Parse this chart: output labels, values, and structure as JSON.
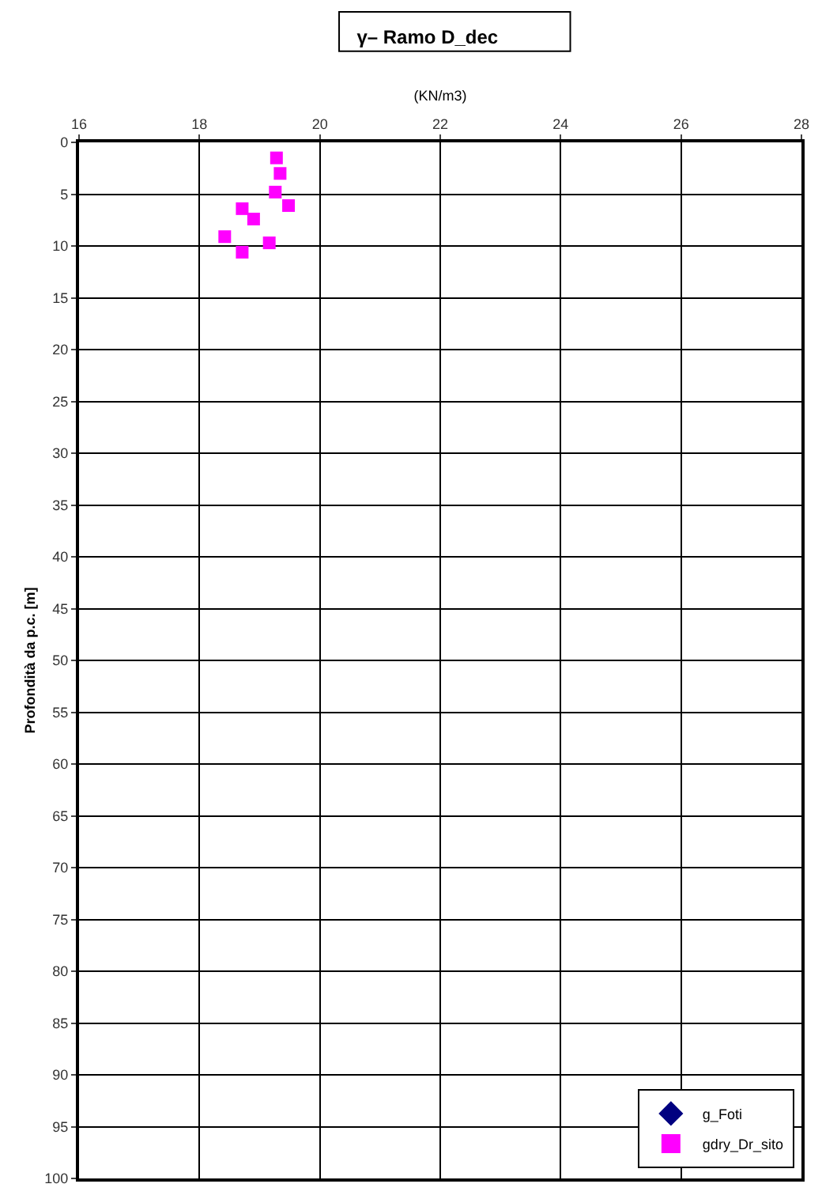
{
  "chart_data": {
    "type": "scatter",
    "title": "γ– Ramo D_dec",
    "xlabel": "(KN/m3)",
    "ylabel": "Profondità da p.c. [m]",
    "xlim": [
      16,
      28
    ],
    "xticks": [
      16,
      18,
      20,
      22,
      24,
      26,
      28
    ],
    "ylim": [
      100,
      0
    ],
    "yticks": [
      0,
      5,
      10,
      15,
      20,
      25,
      30,
      35,
      40,
      45,
      50,
      55,
      60,
      65,
      70,
      75,
      80,
      85,
      90,
      95,
      100
    ],
    "grid": true,
    "legend": "bottom right",
    "series": [
      {
        "name": "g_Foti",
        "color": "#000080",
        "marker": "diamond"
      },
      {
        "name": "gdry_Dr_sito",
        "color": "#ff00ff",
        "marker": "square",
        "x": [
          19.28,
          19.34,
          19.26,
          19.48,
          18.71,
          18.9,
          18.42,
          19.16,
          18.71
        ],
        "values": [
          1.5,
          3.0,
          4.8,
          6.1,
          6.4,
          7.4,
          9.1,
          9.7,
          10.6
        ]
      }
    ]
  }
}
